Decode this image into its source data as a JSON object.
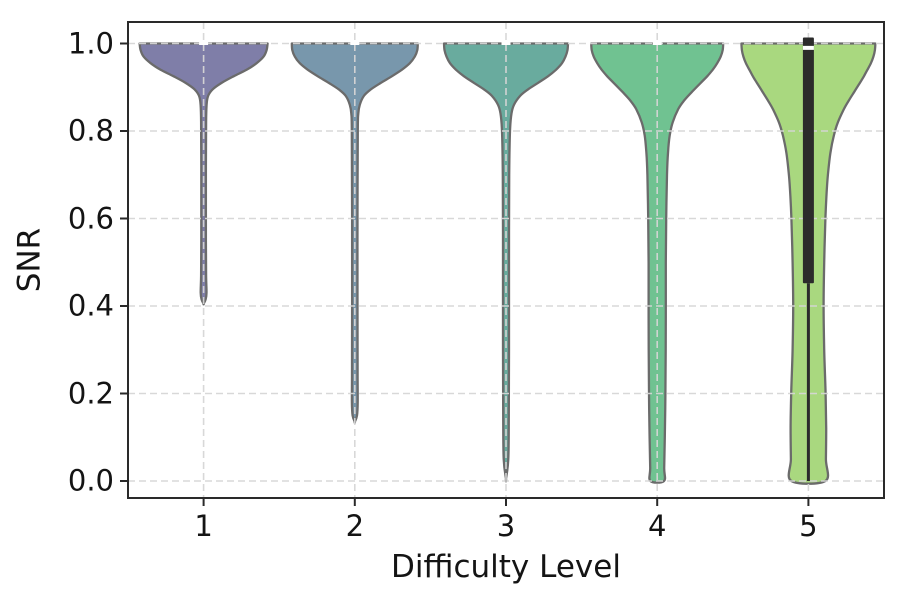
{
  "chart_data": {
    "type": "violin",
    "title": "",
    "xlabel": "Difficulty Level",
    "ylabel": "SNR",
    "categories": [
      "1",
      "2",
      "3",
      "4",
      "5"
    ],
    "y_ticks": [
      {
        "label": "1.0",
        "value": 1.0
      },
      {
        "label": "0.8",
        "value": 0.8
      },
      {
        "label": "0.6",
        "value": 0.6
      },
      {
        "label": "0.4",
        "value": 0.4
      },
      {
        "label": "0.2",
        "value": 0.2
      },
      {
        "label": "0.0",
        "value": 0.0
      }
    ],
    "ylim": [
      0.0,
      1.0
    ],
    "grid": {
      "on": true,
      "style": "dashed",
      "color": "#d6d6d6"
    },
    "legend": {
      "shown": false
    },
    "style": {
      "edge_color": "#6b6b6b",
      "edge_width": 2.3,
      "box_color": "#2b2b2b",
      "median_marker_color": "#ffffff",
      "spine_color": "#2a2a2a",
      "text_color": "#141414",
      "background": "#ffffff"
    },
    "violins": [
      {
        "level": "1",
        "fill": "#7f7ea8",
        "min": 0.405,
        "max": 1.0,
        "median": 1.0,
        "median_marker": true,
        "profile": [
          [
            1.0,
            64
          ],
          [
            0.985,
            63
          ],
          [
            0.97,
            60
          ],
          [
            0.955,
            53
          ],
          [
            0.94,
            43
          ],
          [
            0.925,
            30
          ],
          [
            0.91,
            18
          ],
          [
            0.895,
            9
          ],
          [
            0.88,
            4.5
          ],
          [
            0.86,
            3
          ],
          [
            0.82,
            2.5
          ],
          [
            0.7,
            2.3
          ],
          [
            0.55,
            2.3
          ],
          [
            0.47,
            2.5
          ],
          [
            0.43,
            2.9
          ],
          [
            0.415,
            2
          ],
          [
            0.405,
            0
          ]
        ]
      },
      {
        "level": "2",
        "fill": "#7897ac",
        "min": 0.135,
        "max": 1.0,
        "median": 1.0,
        "median_marker": true,
        "profile": [
          [
            1.0,
            63
          ],
          [
            0.985,
            62.5
          ],
          [
            0.97,
            60
          ],
          [
            0.955,
            55
          ],
          [
            0.94,
            47
          ],
          [
            0.925,
            37
          ],
          [
            0.91,
            26
          ],
          [
            0.895,
            16
          ],
          [
            0.88,
            9
          ],
          [
            0.86,
            5
          ],
          [
            0.84,
            3.5
          ],
          [
            0.8,
            3
          ],
          [
            0.6,
            2.7
          ],
          [
            0.4,
            2.7
          ],
          [
            0.25,
            2.8
          ],
          [
            0.18,
            2.9
          ],
          [
            0.15,
            2.2
          ],
          [
            0.135,
            0
          ]
        ]
      },
      {
        "level": "3",
        "fill": "#69ab9e",
        "min": 0.005,
        "max": 1.0,
        "median": 1.0,
        "median_marker": true,
        "profile": [
          [
            1.0,
            62
          ],
          [
            0.985,
            61.5
          ],
          [
            0.97,
            59.5
          ],
          [
            0.955,
            56
          ],
          [
            0.94,
            50
          ],
          [
            0.925,
            42
          ],
          [
            0.91,
            32
          ],
          [
            0.895,
            22
          ],
          [
            0.88,
            14
          ],
          [
            0.86,
            8
          ],
          [
            0.84,
            5.5
          ],
          [
            0.8,
            4
          ],
          [
            0.7,
            3.2
          ],
          [
            0.5,
            3
          ],
          [
            0.3,
            3
          ],
          [
            0.15,
            2.8
          ],
          [
            0.05,
            2.3
          ],
          [
            0.005,
            0
          ]
        ]
      },
      {
        "level": "4",
        "fill": "#70c291",
        "min": 0.0,
        "max": 1.0,
        "median": 1.0,
        "median_marker": true,
        "profile": [
          [
            1.0,
            66
          ],
          [
            0.985,
            65.5
          ],
          [
            0.97,
            63.5
          ],
          [
            0.955,
            60
          ],
          [
            0.94,
            55.5
          ],
          [
            0.925,
            50
          ],
          [
            0.91,
            43.5
          ],
          [
            0.89,
            35
          ],
          [
            0.87,
            27
          ],
          [
            0.85,
            21
          ],
          [
            0.82,
            15.5
          ],
          [
            0.79,
            12.5
          ],
          [
            0.75,
            10.8
          ],
          [
            0.7,
            9.8
          ],
          [
            0.6,
            9
          ],
          [
            0.5,
            8.6
          ],
          [
            0.4,
            8.6
          ],
          [
            0.3,
            8.5
          ],
          [
            0.2,
            8.2
          ],
          [
            0.1,
            7.6
          ],
          [
            0.03,
            7
          ],
          [
            0.0,
            6.8
          ]
        ]
      },
      {
        "level": "5",
        "fill": "#a9d87f",
        "min": 0.0,
        "max": 1.0,
        "median": 0.99,
        "median_marker": false,
        "box": {
          "q3": 1.0,
          "q1": 0.452,
          "median": 0.99,
          "whisker_min": 0.0
        },
        "profile": [
          [
            1.0,
            67
          ],
          [
            0.985,
            66.5
          ],
          [
            0.97,
            65
          ],
          [
            0.955,
            62.5
          ],
          [
            0.94,
            59
          ],
          [
            0.925,
            55.5
          ],
          [
            0.91,
            51.5
          ],
          [
            0.89,
            46
          ],
          [
            0.87,
            40.5
          ],
          [
            0.85,
            35.5
          ],
          [
            0.82,
            29.5
          ],
          [
            0.79,
            25.5
          ],
          [
            0.75,
            22
          ],
          [
            0.7,
            19.5
          ],
          [
            0.65,
            18
          ],
          [
            0.6,
            17
          ],
          [
            0.5,
            15.8
          ],
          [
            0.4,
            15.2
          ],
          [
            0.3,
            15.8
          ],
          [
            0.2,
            17.2
          ],
          [
            0.12,
            17.8
          ],
          [
            0.05,
            17.5
          ],
          [
            0.0,
            17
          ]
        ]
      }
    ]
  }
}
